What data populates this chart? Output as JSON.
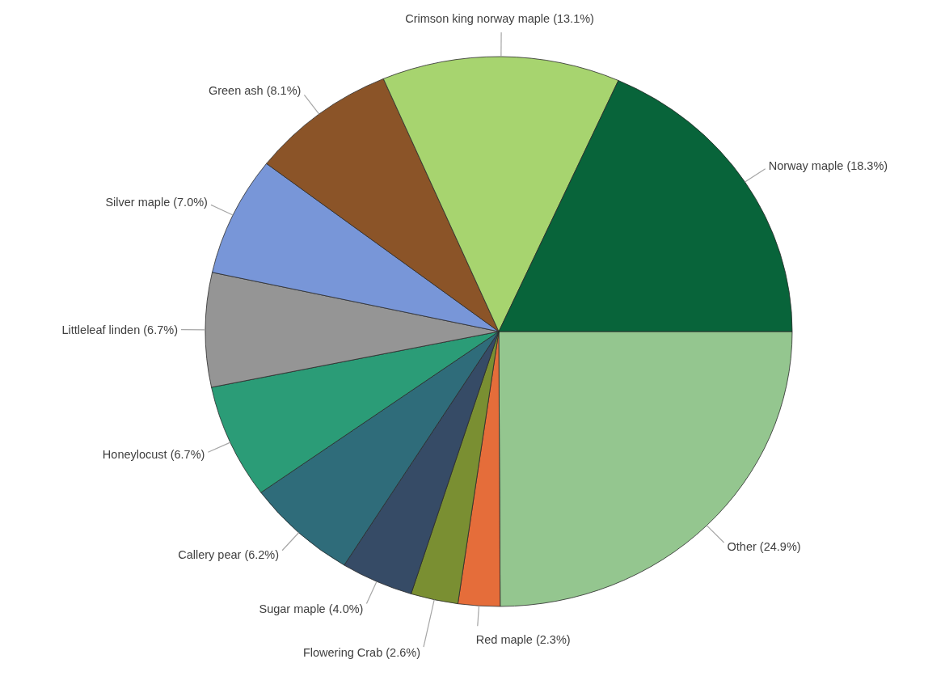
{
  "chart_data": {
    "type": "pie",
    "categories": [
      "Other",
      "Red maple",
      "Flowering Crab",
      "Sugar maple",
      "Callery pear",
      "Honeylocust",
      "Littleleaf linden",
      "Silver maple",
      "Green ash",
      "Crimson king norway maple",
      "Norway maple"
    ],
    "values": [
      24.9,
      2.3,
      2.6,
      4.0,
      6.2,
      6.7,
      6.7,
      7.0,
      8.1,
      13.1,
      18.3
    ],
    "value_labels": [
      "(24.9%)",
      "(2.3%)",
      "(2.6%)",
      "(4.0%)",
      "(6.2%)",
      "(6.7%)",
      "(6.7%)",
      "(7.0%)",
      "(8.1%)",
      "(13.1%)",
      "(18.3%)"
    ],
    "colors": [
      "#94c68f",
      "#e56d3a",
      "#7a8f32",
      "#364b66",
      "#2f6c7a",
      "#2b9c77",
      "#959595",
      "#7896d8",
      "#8b5428",
      "#a7d46f",
      "#08643a"
    ]
  }
}
